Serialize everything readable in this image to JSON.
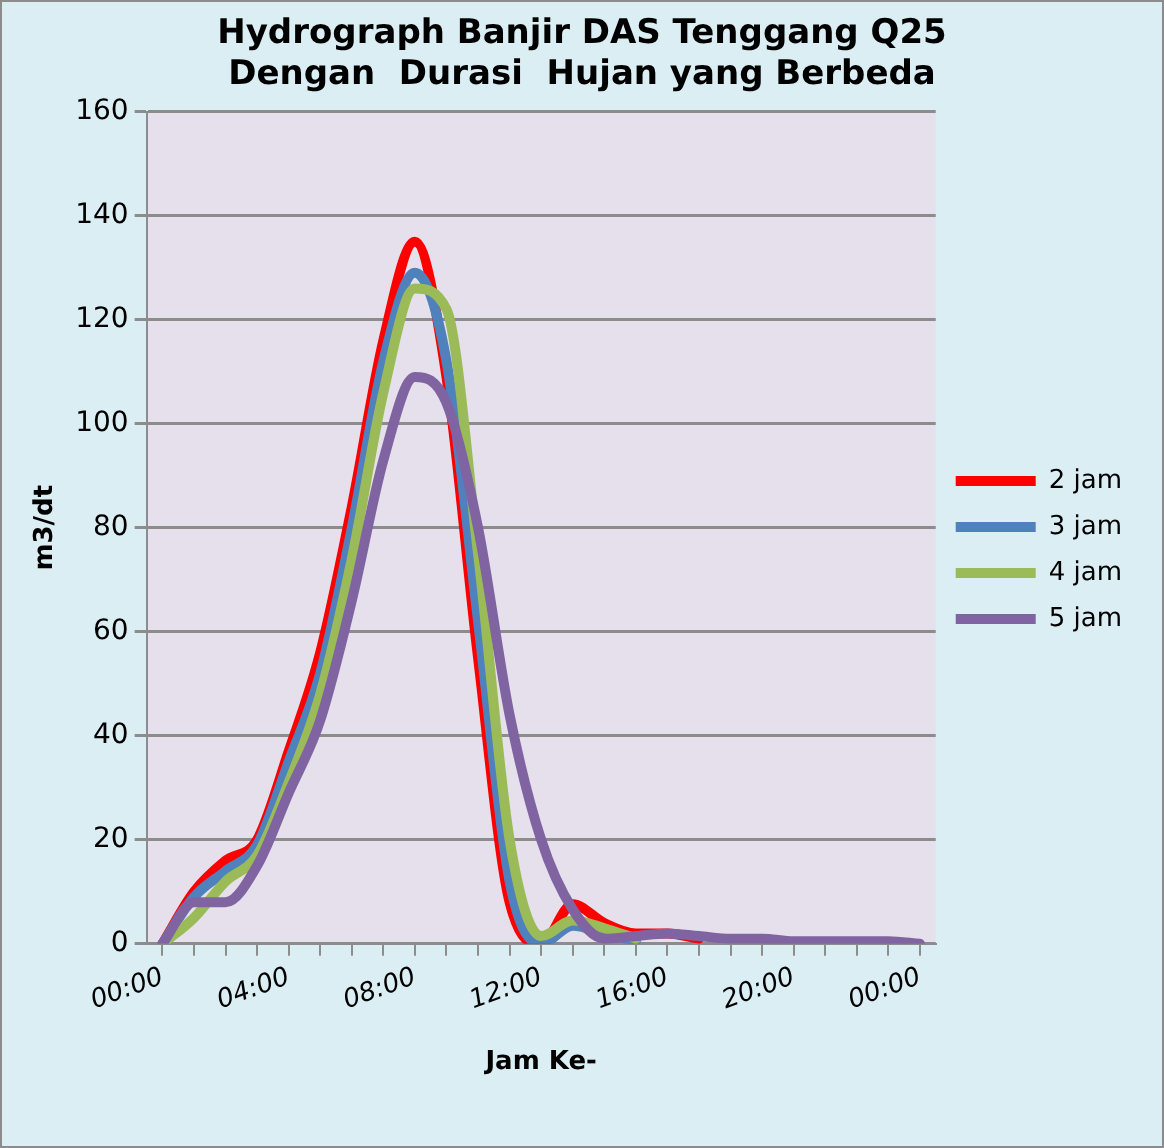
{
  "chart_data": {
    "type": "line",
    "title": [
      "Hydrograph Banjir DAS Tenggang Q25",
      "Dengan  Durasi  Hujan yang Berbeda"
    ],
    "xlabel": "Jam Ke-",
    "ylabel": "m3/dt",
    "categories": [
      "00:00",
      null,
      null,
      null,
      "04:00",
      null,
      null,
      null,
      "08:00",
      null,
      null,
      null,
      "12:00",
      null,
      null,
      null,
      "16:00",
      null,
      null,
      null,
      "20:00",
      null,
      null,
      null,
      "00:00"
    ],
    "series": [
      {
        "name": "2 jam",
        "color": "#ff0000",
        "values": [
          0,
          10,
          16,
          20,
          37,
          56,
          84,
          116,
          135,
          109,
          55,
          8,
          0,
          7.6,
          4,
          2,
          2,
          1,
          null,
          null,
          null,
          null,
          null,
          null,
          null
        ]
      },
      {
        "name": "3 jam",
        "color": "#4f81bd",
        "values": [
          0,
          9,
          14,
          19,
          35,
          52,
          80,
          112,
          129,
          112,
          62,
          12,
          0,
          3.5,
          2,
          0.5,
          null,
          null,
          null,
          null,
          null,
          null,
          null,
          null,
          null
        ]
      },
      {
        "name": "4 jam",
        "color": "#9bbb59",
        "values": [
          0,
          5,
          12,
          17,
          31,
          48,
          74,
          106,
          126,
          122,
          75,
          20,
          1.5,
          4.5,
          3,
          1,
          null,
          null,
          null,
          null,
          null,
          null,
          null,
          null,
          null
        ]
      },
      {
        "name": "5 jam",
        "color": "#8064a2",
        "values": [
          0,
          8,
          8,
          15,
          29,
          43,
          66,
          93,
          109,
          104,
          80,
          44,
          20,
          6.6,
          1,
          1.5,
          2,
          1.5,
          1,
          1,
          0.5,
          0.5,
          0.5,
          0.5,
          0
        ]
      }
    ],
    "ylim": [
      0,
      160
    ],
    "yticks": [
      0,
      20,
      40,
      60,
      80,
      100,
      120,
      140,
      160
    ],
    "grid": "y",
    "legend": "right",
    "marker": "none",
    "line_style": "solid"
  }
}
